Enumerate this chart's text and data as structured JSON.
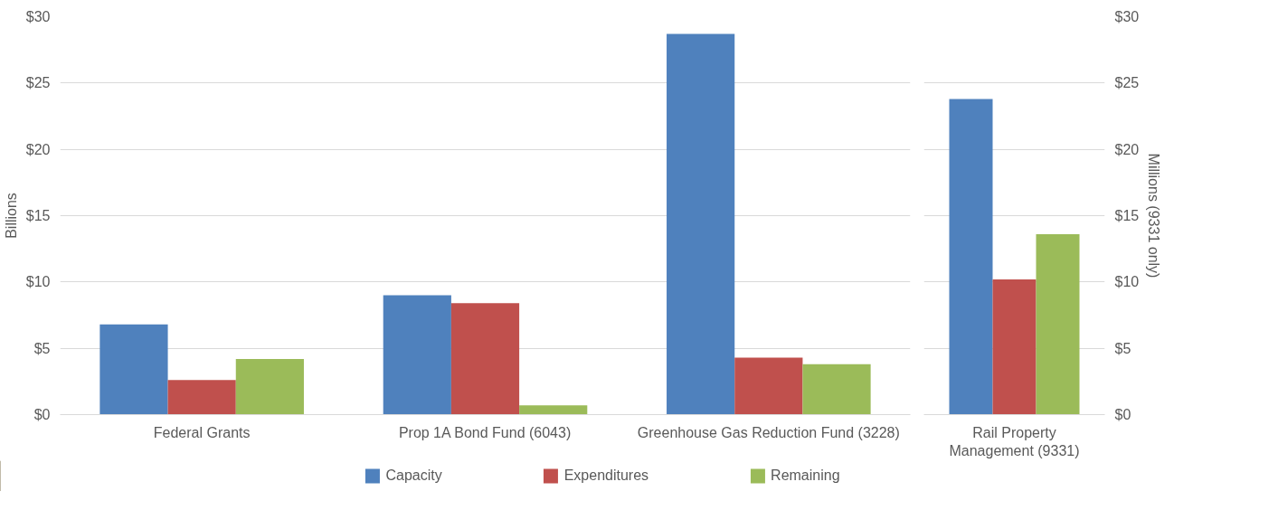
{
  "chart_data": [
    {
      "type": "bar",
      "categories": [
        "Federal Grants",
        "Prop 1A Bond Fund (6043)",
        "Greenhouse Gas Reduction Fund (3228)"
      ],
      "ylabel": "Billions",
      "ylim": [
        0,
        30
      ],
      "yticks": [
        {
          "value": 0,
          "label": "$0"
        },
        {
          "value": 5,
          "label": "$5"
        },
        {
          "value": 10,
          "label": "$10"
        },
        {
          "value": 15,
          "label": "$15"
        },
        {
          "value": 20,
          "label": "$20"
        },
        {
          "value": 25,
          "label": "$25"
        },
        {
          "value": 30,
          "label": "$30"
        }
      ],
      "grid": "y",
      "legend": "bottom",
      "series": [
        {
          "name": "Capacity",
          "color": "#4f81bd",
          "values": [
            6.8,
            9.0,
            28.7
          ]
        },
        {
          "name": "Expenditures",
          "color": "#c0504d",
          "values": [
            2.6,
            8.4,
            4.3
          ]
        },
        {
          "name": "Remaining",
          "color": "#9bbb59",
          "values": [
            4.2,
            0.7,
            3.8
          ]
        }
      ]
    },
    {
      "type": "bar",
      "categories": [
        "Rail Property Management (9331)"
      ],
      "y2label": "Millions (9331 only)",
      "y2lim": [
        0,
        30
      ],
      "y2ticks": [
        {
          "value": 0,
          "label": "$0"
        },
        {
          "value": 5,
          "label": "$5"
        },
        {
          "value": 10,
          "label": "$10"
        },
        {
          "value": 15,
          "label": "$15"
        },
        {
          "value": 20,
          "label": "$20"
        },
        {
          "value": 25,
          "label": "$25"
        },
        {
          "value": 30,
          "label": "$30"
        }
      ],
      "grid": "y",
      "series": [
        {
          "color": "#4f81bd",
          "values": [
            23.8
          ],
          "axis": "y2"
        },
        {
          "color": "#c0504d",
          "values": [
            10.2
          ],
          "axis": "y2"
        },
        {
          "color": "#9bbb59",
          "values": [
            13.6
          ],
          "axis": "y2"
        }
      ]
    }
  ]
}
